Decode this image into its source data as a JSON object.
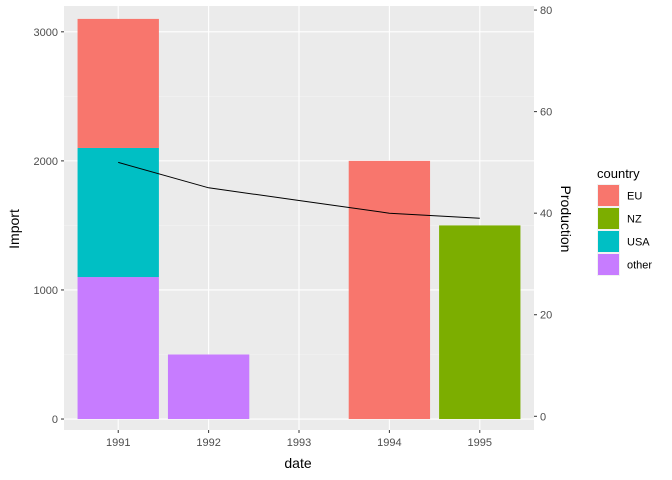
{
  "chart_data": {
    "type": "bar",
    "categories": [
      "1991",
      "1992",
      "1993",
      "1994",
      "1995"
    ],
    "xlabel": "date",
    "ylabel": "Import",
    "y2label": "Production",
    "ylim": [
      -85,
      3200
    ],
    "y2lim": [
      -2.7,
      80.8
    ],
    "yticks": [
      0,
      1000,
      2000,
      3000
    ],
    "y2ticks": [
      0,
      20,
      40,
      60,
      80
    ],
    "grid": true,
    "legend": {
      "title": "country",
      "placement": "right",
      "entries": [
        {
          "name": "EU",
          "color": "#F8766D"
        },
        {
          "name": "NZ",
          "color": "#7CAE00"
        },
        {
          "name": "USA",
          "color": "#00BFC4"
        },
        {
          "name": "other",
          "color": "#C77CFF"
        }
      ]
    },
    "stack_order": [
      "other",
      "USA",
      "NZ",
      "EU"
    ],
    "series": [
      {
        "name": "EU",
        "values": [
          1000,
          0,
          0,
          2000,
          0
        ]
      },
      {
        "name": "NZ",
        "values": [
          0,
          0,
          0,
          0,
          1500
        ]
      },
      {
        "name": "USA",
        "values": [
          1000,
          0,
          0,
          0,
          0
        ]
      },
      {
        "name": "other",
        "values": [
          1100,
          500,
          0,
          0,
          0
        ]
      }
    ],
    "line": {
      "x": [
        "1991",
        "1992",
        "1993",
        "1994",
        "1995"
      ],
      "values": [
        50,
        45,
        42.5,
        40,
        39
      ],
      "color": "#000000"
    }
  }
}
